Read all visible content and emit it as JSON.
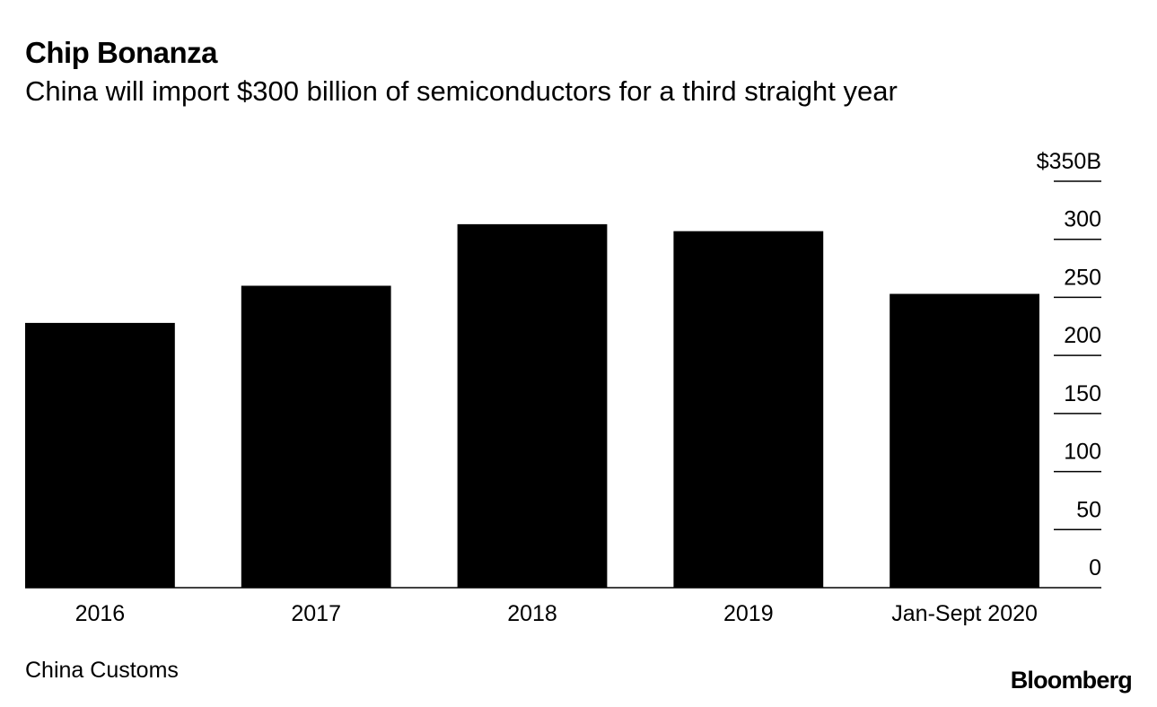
{
  "chart_data": {
    "type": "bar",
    "title": "Chip Bonanza",
    "subtitle": "China will import $300 billion of semiconductors for a third straight year",
    "categories": [
      "2016",
      "2017",
      "2018",
      "2019",
      "Jan-Sept 2020"
    ],
    "values": [
      228,
      260,
      313,
      307,
      253
    ],
    "ylim": [
      0,
      350
    ],
    "yticks": [
      0,
      50,
      100,
      150,
      200,
      250,
      300,
      350
    ],
    "ytick_labels": [
      "0",
      "50",
      "100",
      "150",
      "200",
      "250",
      "300",
      "$350B"
    ],
    "axis_side": "right",
    "bar_color": "#000000",
    "xlabel": "",
    "ylabel": ""
  },
  "footer": {
    "source": "China Customs",
    "brand": "Bloomberg"
  }
}
